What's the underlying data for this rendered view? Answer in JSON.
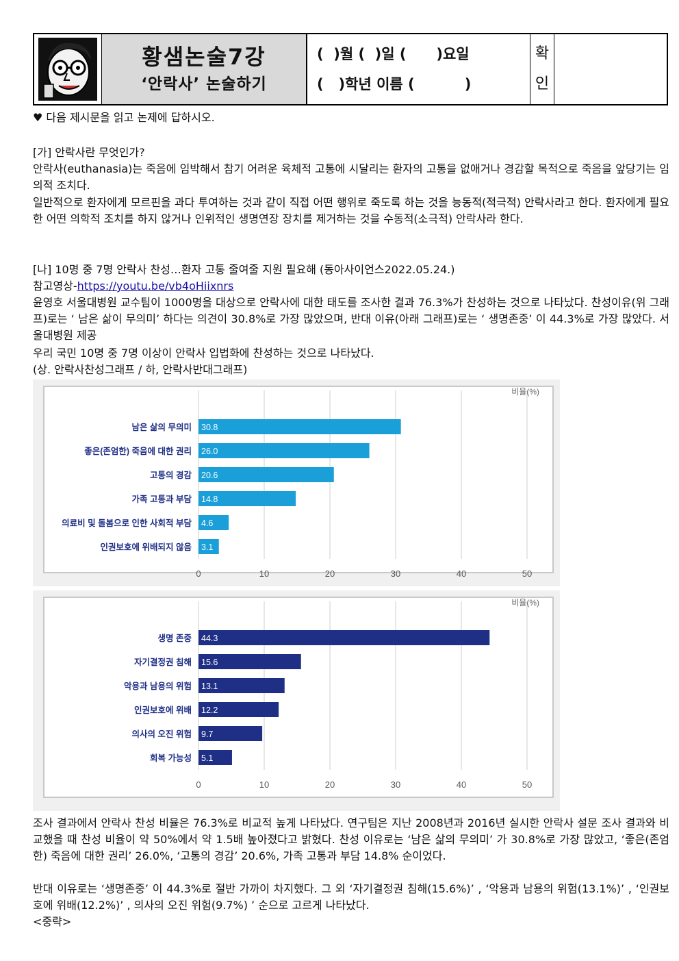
{
  "header": {
    "title": "황샘논술7강",
    "subtitle": "‘안락사’ 논술하기",
    "date_line": "(  )월 (  )일 (      )요일",
    "name_line": "(   )학년 이름 (          )",
    "check_label_1": "확",
    "check_label_2": "인"
  },
  "instruction": "♥ 다음 제시문을 읽고 논제에 답하시오.",
  "section_ga": {
    "heading": "[가] 안락사란 무엇인가?",
    "p1": "안락사(euthanasia)는 죽음에 임박해서 참기 어려운 육체적 고통에 시달리는 환자의 고통을 없애거나 경감할 목적으로 죽음을 앞당기는 임의적 조치다.",
    "p2": "일반적으로 환자에게 모르핀을 과다 투여하는 것과 같이 직접 어떤 행위로 죽도록 하는 것을 능동적(적극적) 안락사라고 한다. 환자에게 필요한 어떤 의학적 조치를 하지 않거나 인위적인 생명연장 장치를 제거하는 것을 수동적(소극적) 안락사라 한다."
  },
  "section_na": {
    "heading": "[나] 10명 중 7명 안락사 찬성…환자 고통 줄여줄 지원 필요해 (동아사이언스2022.05.24.)",
    "ref_label": "참고영상-",
    "ref_link": "https://youtu.be/vb4oHiixnrs",
    "p1": "윤영호 서울대병원 교수팀이 1000명을 대상으로 안락사에 대한 태도를 조사한 결과 76.3%가 찬성하는 것으로 나타났다. 찬성이유(위 그래프)로는 ‘ 남은 삶이 무의미’ 하다는 의견이 30.8%로 가장 많았으며, 반대 이유(아래 그래프)로는 ‘ 생명존중’ 이 44.3%로 가장 많았다. 서울대병원 제공",
    "p2": "우리 국민 10명 중 7명 이상이 안락사 입법화에 찬성하는 것으로 나타났다.",
    "p3": "(상. 안락사찬성그래프 / 하, 안락사반대그래프)"
  },
  "chart_data": [
    {
      "type": "bar",
      "orientation": "horizontal",
      "unit_label": "비율(%)",
      "categories": [
        "남은 삶의 무의미",
        "좋은(존엄한) 죽음에 대한 권리",
        "고통의 경감",
        "가족 고통과 부담",
        "의료비 및 돌봄으로 인한 사회적 부담",
        "인권보호에 위배되지 않음"
      ],
      "values": [
        30.8,
        26.0,
        20.6,
        14.8,
        4.6,
        3.1
      ],
      "value_labels": [
        "30.8",
        "26.0",
        "20.6",
        "14.8",
        "4.6",
        "3.1"
      ],
      "xlim": [
        0,
        50
      ],
      "ticks": [
        0,
        10,
        20,
        30,
        40,
        50
      ],
      "color": "#1a9fd8",
      "grid": true
    },
    {
      "type": "bar",
      "orientation": "horizontal",
      "unit_label": "비율(%)",
      "categories": [
        "생명 존중",
        "자기결정권 침해",
        "악용과 남용의 위험",
        "인권보호에 위배",
        "의사의 오진 위험",
        "회복 가능성"
      ],
      "values": [
        44.3,
        15.6,
        13.1,
        12.2,
        9.7,
        5.1
      ],
      "value_labels": [
        "44.3",
        "15.6",
        "13.1",
        "12.2",
        "9.7",
        "5.1"
      ],
      "xlim": [
        0,
        50
      ],
      "ticks": [
        0,
        10,
        20,
        30,
        40,
        50
      ],
      "color": "#1f2f86",
      "grid": true
    }
  ],
  "summary": {
    "p1": "조사 결과에서 안락사 찬성 비율은 76.3%로 비교적 높게 나타났다. 연구팀은 지난 2008년과 2016년 실시한 안락사 설문 조사 결과와 비교했을 때 찬성 비율이 약 50%에서 약 1.5배 높아졌다고 밝혔다. 찬성 이유로는 ‘남은 삶의 무의미’ 가 30.8%로 가장 많았고, ‘좋은(존엄한) 죽음에 대한 권리’ 26.0%, ‘고통의 경감’ 20.6%, 가족 고통과 부담 14.8% 순이었다.",
    "p2": "반대 이유로는 ‘생명존중’ 이 44.3%로 절반 가까이 차지했다. 그 외 ‘자기결정권 침해(15.6%)’ , ‘악용과 남용의 위험(13.1%)’ , ‘인권보호에 위배(12.2%)’ , 의사의 오진 위험(9.7%) ’ 순으로 고르게 나타났다.",
    "ellipsis": "<중략>"
  }
}
